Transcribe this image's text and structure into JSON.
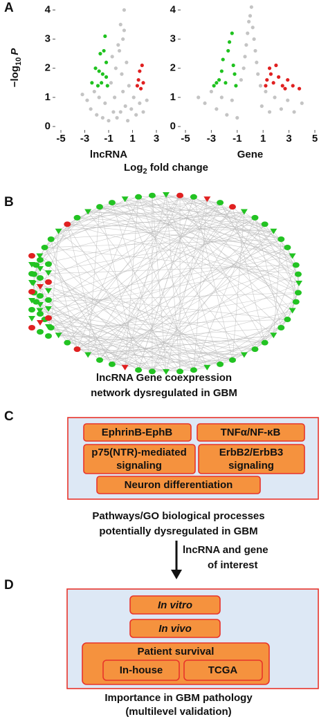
{
  "chart_data": [
    {
      "type": "scatter",
      "x_label": "lncRNA",
      "xlim": [
        -5,
        3
      ],
      "ylim": [
        0,
        4.2
      ],
      "xticks": [
        -5,
        -3,
        -1,
        1,
        3
      ],
      "yticks": [
        0,
        1,
        2,
        3,
        4
      ],
      "series": [
        {
          "color": "#c4c4c4",
          "x": [
            -3.2,
            -2.8,
            -2.5,
            -2.2,
            -2,
            -1.8,
            -1.5,
            -1.3,
            -1,
            -0.8,
            -0.6,
            -0.4,
            -0.2,
            0,
            0.2,
            0.3,
            0.5,
            0.7,
            0.9,
            1.1,
            1.3,
            1.6,
            1.9,
            2.2,
            -0.5,
            -0.3,
            0.1,
            0.4,
            -0.7,
            0.6,
            0,
            0.2,
            -0.1,
            0.3
          ],
          "values": [
            1.1,
            0.9,
            0.6,
            1.2,
            0.4,
            1.0,
            0.3,
            0.8,
            0.2,
            1.5,
            0.5,
            2.0,
            2.8,
            3.5,
            3.0,
            4.0,
            2.2,
            1.4,
            0.6,
            1.0,
            0.4,
            0.8,
            0.5,
            0.9,
            1.0,
            0.3,
            1.8,
            0.7,
            2.4,
            0.2,
            0.5,
            1.2,
            2.6,
            3.3
          ]
        },
        {
          "color": "#1fc21f",
          "x": [
            -2.4,
            -2.1,
            -1.9,
            -1.7,
            -1.5,
            -1.3,
            -1.2,
            -1.1,
            -1.6,
            -1.4,
            -1.8,
            -1.2
          ],
          "values": [
            1.5,
            2.0,
            1.4,
            2.5,
            1.8,
            3.1,
            2.2,
            1.4,
            1.5,
            2.6,
            1.9,
            1.7
          ]
        },
        {
          "color": "#e02020",
          "x": [
            1.4,
            1.6,
            1.8,
            1.5,
            1.9,
            1.7
          ],
          "values": [
            1.4,
            1.9,
            2.1,
            1.6,
            1.5,
            1.3
          ]
        }
      ]
    },
    {
      "type": "scatter",
      "x_label": "Gene",
      "xlim": [
        -5,
        5
      ],
      "ylim": [
        0,
        4.2
      ],
      "xticks": [
        -5,
        -3,
        -1,
        1,
        3,
        5
      ],
      "yticks": [
        0,
        1,
        2,
        3,
        4
      ],
      "series": [
        {
          "color": "#c4c4c4",
          "x": [
            -4,
            -3.5,
            -3,
            -2.6,
            -2.2,
            -1.8,
            -1.4,
            -1,
            -0.7,
            -0.4,
            -0.2,
            0,
            0.1,
            0.2,
            0.4,
            0.6,
            0.9,
            1.2,
            1.5,
            1.9,
            2.4,
            2.9,
            3.4,
            4,
            -0.3,
            0.3,
            -0.1,
            0.5,
            -0.5,
            0.8
          ],
          "values": [
            1.0,
            0.8,
            1.2,
            0.6,
            1.0,
            0.4,
            0.9,
            0.3,
            1.6,
            2.4,
            3.2,
            3.8,
            4.1,
            3.4,
            2.6,
            1.8,
            0.7,
            1.2,
            0.5,
            1.0,
            0.6,
            0.9,
            0.5,
            0.8,
            2.8,
            3.0,
            3.6,
            2.2,
            2.0,
            1.4
          ]
        },
        {
          "color": "#1fc21f",
          "x": [
            -2.8,
            -2.4,
            -2.1,
            -1.9,
            -1.6,
            -1.4,
            -1.2,
            -1.1,
            -2.2,
            -1.7,
            -1.3,
            -2.6
          ],
          "values": [
            1.4,
            1.6,
            2.3,
            1.5,
            2.9,
            3.2,
            1.8,
            1.4,
            1.9,
            2.6,
            2.1,
            1.5
          ]
        },
        {
          "color": "#e02020",
          "x": [
            1.2,
            1.5,
            1.8,
            2.2,
            2.5,
            2.9,
            3.3,
            3.8,
            1.6,
            2,
            1.3,
            2.7
          ],
          "values": [
            1.4,
            2.0,
            1.5,
            1.7,
            1.4,
            1.6,
            1.4,
            1.3,
            1.8,
            2.1,
            1.6,
            1.3
          ]
        }
      ]
    }
  ],
  "panel_a": {
    "label": "A",
    "y_label": [
      "−log",
      "10",
      "P"
    ],
    "x_label": [
      "Log",
      "2",
      " fold change"
    ]
  },
  "panel_b": {
    "label": "B",
    "caption": [
      "lncRNA Gene coexpression",
      "network dysregulated in GBM"
    ]
  },
  "panel_c": {
    "label": "C",
    "boxes": [
      "EphrinB-EphB",
      "TNFα/NF-κB",
      [
        "p75(NTR)-mediated",
        "signaling"
      ],
      [
        "ErbB2/ErbB3",
        "signaling"
      ],
      "Neuron differentiation"
    ],
    "caption": [
      "Pathways/GO biological processes",
      "potentially dysregulated in GBM"
    ]
  },
  "arrow_label": [
    "lncRNA and gene",
    "of interest"
  ],
  "panel_d": {
    "label": "D",
    "boxes": [
      "In vitro",
      "In vivo",
      "Patient survival",
      "In-house",
      "TCGA"
    ],
    "caption": [
      "Importance in GBM pathology",
      "(multilevel validation)"
    ]
  }
}
